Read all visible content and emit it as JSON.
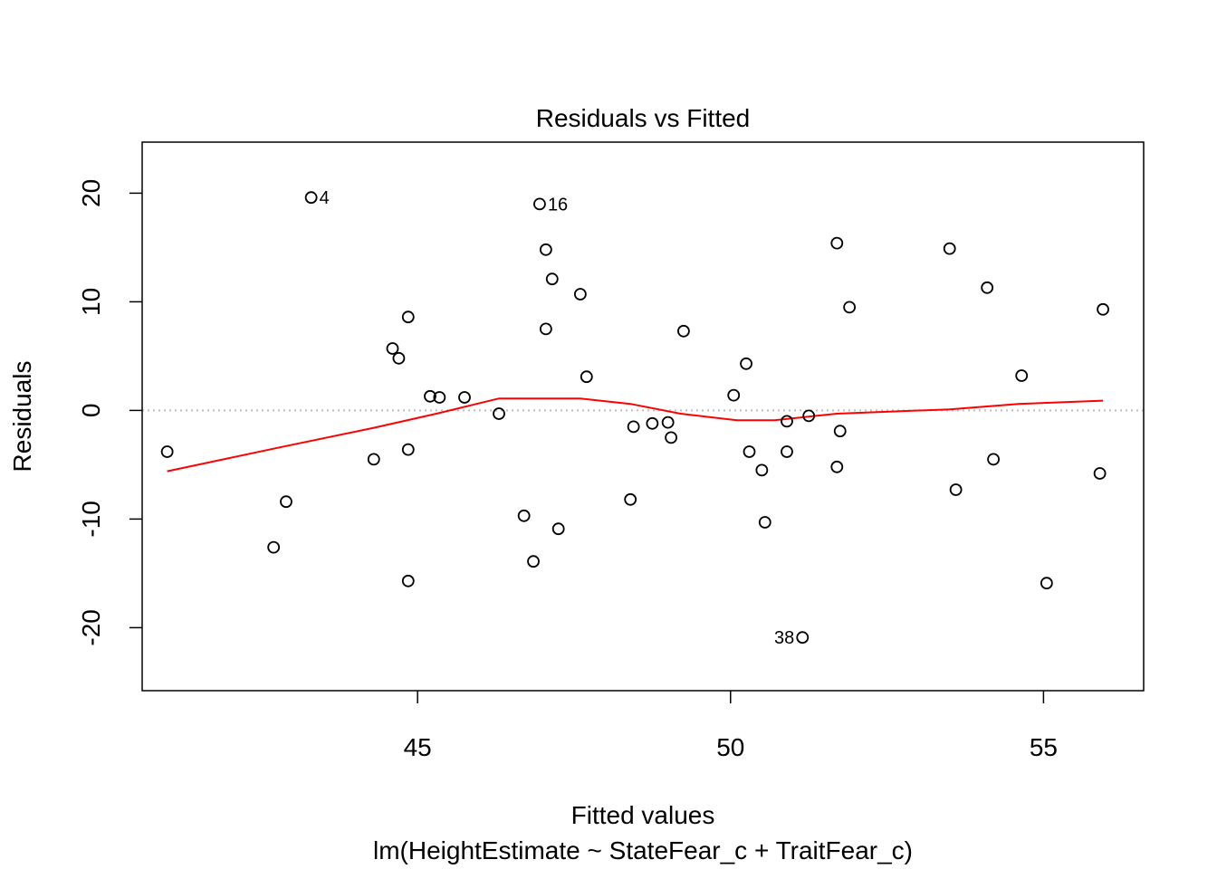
{
  "chart_data": {
    "type": "scatter",
    "title": "Residuals vs Fitted",
    "xlabel": "Fitted values",
    "subtitle": "lm(HeightEstimate ~ StateFear_c + TraitFear_c)",
    "ylabel": "Residuals",
    "xlim": [
      40.6,
      56.6
    ],
    "ylim": [
      -25.8,
      24.7
    ],
    "xticks": [
      45,
      50,
      55
    ],
    "yticks": [
      -20,
      -10,
      0,
      10,
      20
    ],
    "reference_line": {
      "y": 0,
      "style": "dotted",
      "color": "#bebebe"
    },
    "point_color": "#000000",
    "smoother_color": "#ff0000",
    "points": [
      {
        "x": 41.0,
        "y": -3.8
      },
      {
        "x": 42.7,
        "y": -12.6
      },
      {
        "x": 42.9,
        "y": -8.4
      },
      {
        "x": 43.3,
        "y": 19.6,
        "label": "4"
      },
      {
        "x": 44.3,
        "y": -4.5
      },
      {
        "x": 44.6,
        "y": 5.7
      },
      {
        "x": 44.7,
        "y": 4.8
      },
      {
        "x": 44.85,
        "y": 8.6
      },
      {
        "x": 44.85,
        "y": -3.6
      },
      {
        "x": 44.85,
        "y": -15.7
      },
      {
        "x": 45.2,
        "y": 1.3
      },
      {
        "x": 45.35,
        "y": 1.2
      },
      {
        "x": 45.75,
        "y": 1.2
      },
      {
        "x": 46.3,
        "y": -0.3
      },
      {
        "x": 46.7,
        "y": -9.7
      },
      {
        "x": 46.85,
        "y": -13.9
      },
      {
        "x": 46.95,
        "y": 19.0,
        "label": "16"
      },
      {
        "x": 47.05,
        "y": 14.8
      },
      {
        "x": 47.05,
        "y": 7.5
      },
      {
        "x": 47.15,
        "y": 12.1
      },
      {
        "x": 47.25,
        "y": -10.9
      },
      {
        "x": 47.6,
        "y": 10.7
      },
      {
        "x": 47.7,
        "y": 3.1
      },
      {
        "x": 48.4,
        "y": -8.2
      },
      {
        "x": 48.45,
        "y": -1.5
      },
      {
        "x": 48.75,
        "y": -1.2
      },
      {
        "x": 49.0,
        "y": -1.1
      },
      {
        "x": 49.05,
        "y": -2.5
      },
      {
        "x": 49.25,
        "y": 7.3
      },
      {
        "x": 50.05,
        "y": 1.4
      },
      {
        "x": 50.25,
        "y": 4.3
      },
      {
        "x": 50.3,
        "y": -3.8
      },
      {
        "x": 50.5,
        "y": -5.5
      },
      {
        "x": 50.55,
        "y": -10.3
      },
      {
        "x": 50.9,
        "y": -3.8
      },
      {
        "x": 50.9,
        "y": -1.0
      },
      {
        "x": 51.15,
        "y": -20.9,
        "label": "38",
        "label_side": "left"
      },
      {
        "x": 51.25,
        "y": -0.5
      },
      {
        "x": 51.7,
        "y": 15.4
      },
      {
        "x": 51.7,
        "y": -5.2
      },
      {
        "x": 51.75,
        "y": -1.9
      },
      {
        "x": 51.9,
        "y": 9.5
      },
      {
        "x": 53.5,
        "y": 14.9
      },
      {
        "x": 53.6,
        "y": -7.3
      },
      {
        "x": 54.1,
        "y": 11.3
      },
      {
        "x": 54.2,
        "y": -4.5
      },
      {
        "x": 54.65,
        "y": 3.2
      },
      {
        "x": 55.05,
        "y": -15.9
      },
      {
        "x": 55.9,
        "y": -5.8
      },
      {
        "x": 55.95,
        "y": 9.3
      }
    ],
    "smoother": [
      {
        "x": 41.0,
        "y": -5.6
      },
      {
        "x": 42.8,
        "y": -3.4
      },
      {
        "x": 44.3,
        "y": -1.6
      },
      {
        "x": 45.3,
        "y": -0.3
      },
      {
        "x": 46.3,
        "y": 1.1
      },
      {
        "x": 47.6,
        "y": 1.1
      },
      {
        "x": 48.4,
        "y": 0.6
      },
      {
        "x": 49.2,
        "y": -0.3
      },
      {
        "x": 50.1,
        "y": -0.9
      },
      {
        "x": 50.7,
        "y": -0.9
      },
      {
        "x": 51.7,
        "y": -0.3
      },
      {
        "x": 53.5,
        "y": 0.1
      },
      {
        "x": 54.6,
        "y": 0.6
      },
      {
        "x": 55.95,
        "y": 0.9
      }
    ]
  }
}
